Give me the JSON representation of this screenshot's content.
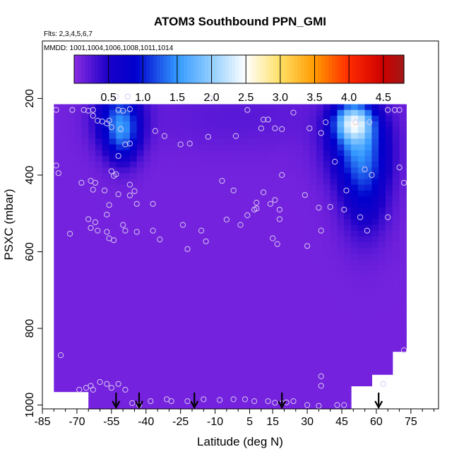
{
  "chart_data": {
    "type": "heatmap",
    "title": "ATOM3 Southbound PPN_GMI",
    "subtitle_flights": "Flts: 2,3,4,5,6,7",
    "subtitle_dates": "MMDD: 1001,1004,1006,1008,1011,1014",
    "xlabel": "Latitude (deg N)",
    "ylabel": "PSXC (mbar)",
    "xlim": [
      -85,
      87
    ],
    "ylim": [
      1010,
      50
    ],
    "y_reversed": true,
    "grid": false,
    "x_ticks": [
      -85,
      -70,
      -55,
      -40,
      -25,
      -10,
      5,
      15,
      30,
      45,
      60,
      75
    ],
    "x_tick_labels": [
      "-85",
      "-70",
      "-55",
      "-40",
      "-25",
      "-10",
      "5",
      "15",
      "30",
      "45",
      "60",
      "75"
    ],
    "y_ticks": [
      200,
      400,
      600,
      800,
      1000
    ],
    "y_tick_labels": [
      "200",
      "400",
      "600",
      "800",
      "1000"
    ],
    "colorbar": {
      "range": [
        0.0,
        4.8
      ],
      "ticks": [
        0.5,
        1.0,
        1.5,
        2.0,
        2.5,
        3.0,
        3.5,
        4.0,
        4.5
      ],
      "tick_labels": [
        "0.5",
        "1.0",
        "1.5",
        "2.0",
        "2.5",
        "3.0",
        "3.5",
        "4.0",
        "4.5"
      ],
      "color_stops": [
        {
          "v": 0.0,
          "c": "#8a2be2"
        },
        {
          "v": 0.5,
          "c": "#1a00c8"
        },
        {
          "v": 0.9,
          "c": "#0000cd"
        },
        {
          "v": 1.5,
          "c": "#3399ff"
        },
        {
          "v": 2.1,
          "c": "#a6d8ff"
        },
        {
          "v": 2.5,
          "c": "#ffffff"
        },
        {
          "v": 3.0,
          "c": "#ffe066"
        },
        {
          "v": 3.5,
          "c": "#ff9a00"
        },
        {
          "v": 4.0,
          "c": "#ff2a00"
        },
        {
          "v": 4.5,
          "c": "#cc0000"
        },
        {
          "v": 4.8,
          "c": "#a01818"
        }
      ]
    },
    "field": {
      "background_value": 0.1,
      "domain_lat": [
        -80,
        73
      ],
      "domain_p": [
        215,
        1005
      ],
      "features": [
        {
          "lat": -52,
          "p": 250,
          "value": 0.9,
          "lat_sigma": 7,
          "p_sigma": 60
        },
        {
          "lat": -50,
          "p": 300,
          "value": 0.7,
          "lat_sigma": 5,
          "p_sigma": 50
        },
        {
          "lat": 50,
          "p": 260,
          "value": 1.6,
          "lat_sigma": 6,
          "p_sigma": 35
        },
        {
          "lat": 52,
          "p": 320,
          "value": 1.0,
          "lat_sigma": 9,
          "p_sigma": 70
        },
        {
          "lat": 55,
          "p": 430,
          "value": 0.7,
          "lat_sigma": 7,
          "p_sigma": 90
        },
        {
          "lat": 0,
          "p": 250,
          "value": 0.12,
          "lat_sigma": 30,
          "p_sigma": 60
        }
      ]
    },
    "sample_points": [
      {
        "lat": -79,
        "p": 230
      },
      {
        "lat": -72,
        "p": 230
      },
      {
        "lat": -67,
        "p": 230
      },
      {
        "lat": -65,
        "p": 232
      },
      {
        "lat": -63,
        "p": 230
      },
      {
        "lat": -63,
        "p": 245
      },
      {
        "lat": -61,
        "p": 258
      },
      {
        "lat": -59,
        "p": 260
      },
      {
        "lat": -56,
        "p": 258
      },
      {
        "lat": -52,
        "p": 230
      },
      {
        "lat": -50,
        "p": 232
      },
      {
        "lat": -47,
        "p": 228
      },
      {
        "lat": -53,
        "p": 195
      },
      {
        "lat": -48,
        "p": 195
      },
      {
        "lat": -57,
        "p": 265
      },
      {
        "lat": -55,
        "p": 275
      },
      {
        "lat": -51,
        "p": 280
      },
      {
        "lat": -49,
        "p": 320
      },
      {
        "lat": -47,
        "p": 318
      },
      {
        "lat": -52,
        "p": 350
      },
      {
        "lat": -36,
        "p": 285
      },
      {
        "lat": -32,
        "p": 298
      },
      {
        "lat": -25,
        "p": 320
      },
      {
        "lat": -21,
        "p": 318
      },
      {
        "lat": -13,
        "p": 300
      },
      {
        "lat": -12,
        "p": 200
      },
      {
        "lat": 4,
        "p": 230
      },
      {
        "lat": 11,
        "p": 255
      },
      {
        "lat": 13,
        "p": 255
      },
      {
        "lat": -79,
        "p": 375
      },
      {
        "lat": -78,
        "p": 395
      },
      {
        "lat": -68,
        "p": 420
      },
      {
        "lat": -64,
        "p": 415
      },
      {
        "lat": -62,
        "p": 420
      },
      {
        "lat": -63,
        "p": 438
      },
      {
        "lat": -58,
        "p": 440
      },
      {
        "lat": -55,
        "p": 390
      },
      {
        "lat": -54,
        "p": 402
      },
      {
        "lat": -53,
        "p": 398
      },
      {
        "lat": -56,
        "p": 478
      },
      {
        "lat": -52,
        "p": 450
      },
      {
        "lat": -47,
        "p": 453
      },
      {
        "lat": -45,
        "p": 442
      },
      {
        "lat": -44,
        "p": 475
      },
      {
        "lat": -47,
        "p": 425
      },
      {
        "lat": -37,
        "p": 475
      },
      {
        "lat": -57,
        "p": 503
      },
      {
        "lat": -65,
        "p": 515
      },
      {
        "lat": -62,
        "p": 523
      },
      {
        "lat": -64,
        "p": 538
      },
      {
        "lat": -61,
        "p": 545
      },
      {
        "lat": -57,
        "p": 548
      },
      {
        "lat": -50,
        "p": 530
      },
      {
        "lat": -49,
        "p": 545
      },
      {
        "lat": -44,
        "p": 548
      },
      {
        "lat": -37,
        "p": 545
      },
      {
        "lat": -34,
        "p": 568
      },
      {
        "lat": -73,
        "p": 553
      },
      {
        "lat": -56,
        "p": 565
      },
      {
        "lat": -54,
        "p": 570
      },
      {
        "lat": -24,
        "p": 530
      },
      {
        "lat": -22,
        "p": 593
      },
      {
        "lat": -16,
        "p": 545
      },
      {
        "lat": -14,
        "p": 573
      },
      {
        "lat": -1,
        "p": 298
      },
      {
        "lat": 10,
        "p": 278
      },
      {
        "lat": 16,
        "p": 278
      },
      {
        "lat": 19,
        "p": 280
      },
      {
        "lat": 24,
        "p": 237
      },
      {
        "lat": 31,
        "p": 278
      },
      {
        "lat": 36,
        "p": 290
      },
      {
        "lat": 38,
        "p": 262
      },
      {
        "lat": -7,
        "p": 415
      },
      {
        "lat": -2,
        "p": 440
      },
      {
        "lat": -5,
        "p": 516
      },
      {
        "lat": 1,
        "p": 530
      },
      {
        "lat": 4,
        "p": 505
      },
      {
        "lat": 7,
        "p": 490
      },
      {
        "lat": 8,
        "p": 487
      },
      {
        "lat": 8,
        "p": 472
      },
      {
        "lat": 11,
        "p": 445
      },
      {
        "lat": 14,
        "p": 475
      },
      {
        "lat": 16,
        "p": 465
      },
      {
        "lat": 18,
        "p": 490
      },
      {
        "lat": 18,
        "p": 515
      },
      {
        "lat": 15,
        "p": 565
      },
      {
        "lat": 17,
        "p": 580
      },
      {
        "lat": 19,
        "p": 400
      },
      {
        "lat": 29,
        "p": 452
      },
      {
        "lat": 35,
        "p": 485
      },
      {
        "lat": 40,
        "p": 483
      },
      {
        "lat": 42,
        "p": 365
      },
      {
        "lat": 47,
        "p": 440
      },
      {
        "lat": 46,
        "p": 490
      },
      {
        "lat": 36,
        "p": 545
      },
      {
        "lat": 30,
        "p": 585
      },
      {
        "lat": 55,
        "p": 385
      },
      {
        "lat": 58,
        "p": 400
      },
      {
        "lat": 53,
        "p": 510
      },
      {
        "lat": 56,
        "p": 545
      },
      {
        "lat": 65,
        "p": 510
      },
      {
        "lat": 70,
        "p": 380
      },
      {
        "lat": 72,
        "p": 420
      },
      {
        "lat": 65,
        "p": 230
      },
      {
        "lat": 68,
        "p": 230
      },
      {
        "lat": 70,
        "p": 230
      },
      {
        "lat": 51,
        "p": 262
      },
      {
        "lat": 57,
        "p": 262
      },
      {
        "lat": -77,
        "p": 870
      },
      {
        "lat": -69,
        "p": 960
      },
      {
        "lat": -66,
        "p": 955
      },
      {
        "lat": -64,
        "p": 950
      },
      {
        "lat": -63,
        "p": 960
      },
      {
        "lat": -60,
        "p": 940
      },
      {
        "lat": -57,
        "p": 945
      },
      {
        "lat": -55,
        "p": 955
      },
      {
        "lat": -52,
        "p": 945
      },
      {
        "lat": -49,
        "p": 960
      },
      {
        "lat": -46,
        "p": 995
      },
      {
        "lat": -43,
        "p": 1000
      },
      {
        "lat": -38,
        "p": 990
      },
      {
        "lat": -31,
        "p": 985
      },
      {
        "lat": -29,
        "p": 990
      },
      {
        "lat": -22,
        "p": 990
      },
      {
        "lat": -15,
        "p": 985
      },
      {
        "lat": -8,
        "p": 987
      },
      {
        "lat": -2,
        "p": 985
      },
      {
        "lat": 3,
        "p": 985
      },
      {
        "lat": 7,
        "p": 990
      },
      {
        "lat": 13,
        "p": 990
      },
      {
        "lat": 16,
        "p": 994
      },
      {
        "lat": 19,
        "p": 995
      },
      {
        "lat": 21,
        "p": 993
      },
      {
        "lat": 24,
        "p": 990
      },
      {
        "lat": 30,
        "p": 1000
      },
      {
        "lat": 36,
        "p": 925
      },
      {
        "lat": 36,
        "p": 950
      },
      {
        "lat": 35,
        "p": 1002
      },
      {
        "lat": 43,
        "p": 1000
      },
      {
        "lat": 46,
        "p": 1000
      },
      {
        "lat": 63,
        "p": 945
      },
      {
        "lat": 72,
        "p": 857
      }
    ],
    "arrows_lat": [
      -53,
      -43,
      -19,
      19,
      61
    ]
  }
}
